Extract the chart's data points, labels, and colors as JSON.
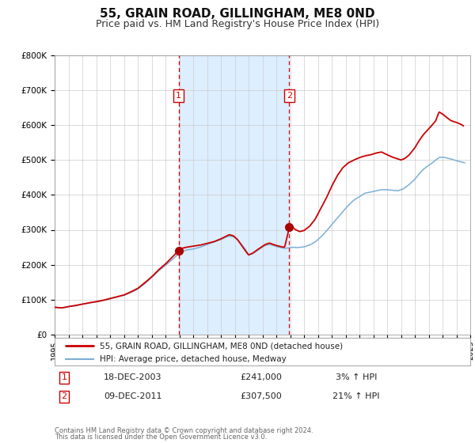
{
  "title": "55, GRAIN ROAD, GILLINGHAM, ME8 0ND",
  "subtitle": "Price paid vs. HM Land Registry's House Price Index (HPI)",
  "title_fontsize": 11,
  "subtitle_fontsize": 9,
  "background_color": "#ffffff",
  "plot_bg_color": "#ffffff",
  "grid_color": "#cccccc",
  "legend1_label": "55, GRAIN ROAD, GILLINGHAM, ME8 0ND (detached house)",
  "legend2_label": "HPI: Average price, detached house, Medway",
  "red_line_color": "#cc0000",
  "blue_line_color": "#7bafd4",
  "shade_color": "#ddeeff",
  "marker_color": "#aa0000",
  "sale1_x": 2003.96,
  "sale1_y": 241000,
  "sale1_label": "1",
  "sale2_x": 2011.94,
  "sale2_y": 307500,
  "sale2_label": "2",
  "table_rows": [
    {
      "num": "1",
      "date": "18-DEC-2003",
      "price": "£241,000",
      "hpi": "3% ↑ HPI"
    },
    {
      "num": "2",
      "date": "09-DEC-2011",
      "price": "£307,500",
      "hpi": "21% ↑ HPI"
    }
  ],
  "footer_line1": "Contains HM Land Registry data © Crown copyright and database right 2024.",
  "footer_line2": "This data is licensed under the Open Government Licence v3.0.",
  "ylim": [
    0,
    800000
  ],
  "xlim": [
    1995,
    2025
  ],
  "yticks": [
    0,
    100000,
    200000,
    300000,
    400000,
    500000,
    600000,
    700000,
    800000
  ],
  "ytick_labels": [
    "£0",
    "£100K",
    "£200K",
    "£300K",
    "£400K",
    "£500K",
    "£600K",
    "£700K",
    "£800K"
  ],
  "xticks": [
    1995,
    1996,
    1997,
    1998,
    1999,
    2000,
    2001,
    2002,
    2003,
    2004,
    2005,
    2006,
    2007,
    2008,
    2009,
    2010,
    2011,
    2012,
    2013,
    2014,
    2015,
    2016,
    2017,
    2018,
    2019,
    2020,
    2021,
    2022,
    2023,
    2024,
    2025
  ],
  "hpi_key_points": [
    [
      1995.0,
      78000
    ],
    [
      1995.5,
      76000
    ],
    [
      1996.0,
      80000
    ],
    [
      1996.5,
      82000
    ],
    [
      1997.0,
      87000
    ],
    [
      1997.5,
      90000
    ],
    [
      1998.0,
      93000
    ],
    [
      1998.5,
      97000
    ],
    [
      1999.0,
      102000
    ],
    [
      1999.5,
      107000
    ],
    [
      2000.0,
      112000
    ],
    [
      2000.5,
      120000
    ],
    [
      2001.0,
      130000
    ],
    [
      2001.5,
      145000
    ],
    [
      2002.0,
      163000
    ],
    [
      2002.5,
      182000
    ],
    [
      2003.0,
      198000
    ],
    [
      2003.5,
      215000
    ],
    [
      2004.0,
      233000
    ],
    [
      2004.5,
      242000
    ],
    [
      2005.0,
      245000
    ],
    [
      2005.5,
      250000
    ],
    [
      2006.0,
      258000
    ],
    [
      2006.5,
      265000
    ],
    [
      2007.0,
      272000
    ],
    [
      2007.3,
      278000
    ],
    [
      2007.6,
      282000
    ],
    [
      2007.9,
      280000
    ],
    [
      2008.2,
      272000
    ],
    [
      2008.5,
      258000
    ],
    [
      2008.8,
      242000
    ],
    [
      2009.0,
      228000
    ],
    [
      2009.3,
      232000
    ],
    [
      2009.6,
      240000
    ],
    [
      2009.9,
      248000
    ],
    [
      2010.2,
      255000
    ],
    [
      2010.5,
      258000
    ],
    [
      2010.8,
      255000
    ],
    [
      2011.0,
      252000
    ],
    [
      2011.3,
      249000
    ],
    [
      2011.6,
      247000
    ],
    [
      2011.9,
      248000
    ],
    [
      2012.2,
      250000
    ],
    [
      2012.5,
      249000
    ],
    [
      2012.8,
      250000
    ],
    [
      2013.1,
      252000
    ],
    [
      2013.5,
      258000
    ],
    [
      2013.9,
      268000
    ],
    [
      2014.3,
      283000
    ],
    [
      2014.7,
      300000
    ],
    [
      2015.0,
      315000
    ],
    [
      2015.4,
      333000
    ],
    [
      2015.8,
      352000
    ],
    [
      2016.2,
      370000
    ],
    [
      2016.6,
      385000
    ],
    [
      2017.0,
      395000
    ],
    [
      2017.4,
      405000
    ],
    [
      2017.8,
      408000
    ],
    [
      2018.2,
      412000
    ],
    [
      2018.6,
      415000
    ],
    [
      2019.0,
      415000
    ],
    [
      2019.4,
      413000
    ],
    [
      2019.8,
      412000
    ],
    [
      2020.2,
      418000
    ],
    [
      2020.6,
      430000
    ],
    [
      2021.0,
      445000
    ],
    [
      2021.3,
      460000
    ],
    [
      2021.6,
      473000
    ],
    [
      2021.9,
      482000
    ],
    [
      2022.2,
      490000
    ],
    [
      2022.5,
      500000
    ],
    [
      2022.8,
      508000
    ],
    [
      2023.1,
      508000
    ],
    [
      2023.4,
      505000
    ],
    [
      2023.7,
      502000
    ],
    [
      2024.0,
      498000
    ],
    [
      2024.3,
      495000
    ],
    [
      2024.6,
      492000
    ]
  ],
  "red_key_points": [
    [
      1995.0,
      78000
    ],
    [
      1995.5,
      76000
    ],
    [
      1996.0,
      80000
    ],
    [
      1996.5,
      83000
    ],
    [
      1997.0,
      87000
    ],
    [
      1997.5,
      91000
    ],
    [
      1998.0,
      94000
    ],
    [
      1998.5,
      98000
    ],
    [
      1999.0,
      103000
    ],
    [
      1999.5,
      108000
    ],
    [
      2000.0,
      113000
    ],
    [
      2000.5,
      122000
    ],
    [
      2001.0,
      132000
    ],
    [
      2001.5,
      148000
    ],
    [
      2002.0,
      165000
    ],
    [
      2002.5,
      185000
    ],
    [
      2003.0,
      202000
    ],
    [
      2003.5,
      222000
    ],
    [
      2003.96,
      241000
    ],
    [
      2004.2,
      247000
    ],
    [
      2004.5,
      250000
    ],
    [
      2005.0,
      253000
    ],
    [
      2005.5,
      256000
    ],
    [
      2006.0,
      261000
    ],
    [
      2006.5,
      266000
    ],
    [
      2007.0,
      274000
    ],
    [
      2007.3,
      280000
    ],
    [
      2007.6,
      286000
    ],
    [
      2007.9,
      283000
    ],
    [
      2008.2,
      272000
    ],
    [
      2008.5,
      255000
    ],
    [
      2008.8,
      238000
    ],
    [
      2009.0,
      228000
    ],
    [
      2009.3,
      233000
    ],
    [
      2009.6,
      242000
    ],
    [
      2009.9,
      250000
    ],
    [
      2010.2,
      258000
    ],
    [
      2010.5,
      262000
    ],
    [
      2010.8,
      258000
    ],
    [
      2011.0,
      255000
    ],
    [
      2011.3,
      252000
    ],
    [
      2011.6,
      250000
    ],
    [
      2011.94,
      307500
    ],
    [
      2012.1,
      310000
    ],
    [
      2012.4,
      300000
    ],
    [
      2012.7,
      295000
    ],
    [
      2013.0,
      298000
    ],
    [
      2013.4,
      310000
    ],
    [
      2013.8,
      330000
    ],
    [
      2014.2,
      360000
    ],
    [
      2014.6,
      390000
    ],
    [
      2015.0,
      425000
    ],
    [
      2015.4,
      455000
    ],
    [
      2015.8,
      478000
    ],
    [
      2016.2,
      492000
    ],
    [
      2016.6,
      500000
    ],
    [
      2017.0,
      507000
    ],
    [
      2017.4,
      512000
    ],
    [
      2017.8,
      515000
    ],
    [
      2018.2,
      520000
    ],
    [
      2018.6,
      523000
    ],
    [
      2019.0,
      515000
    ],
    [
      2019.4,
      508000
    ],
    [
      2019.8,
      503000
    ],
    [
      2020.0,
      500000
    ],
    [
      2020.3,
      505000
    ],
    [
      2020.6,
      515000
    ],
    [
      2021.0,
      535000
    ],
    [
      2021.3,
      555000
    ],
    [
      2021.6,
      572000
    ],
    [
      2021.9,
      585000
    ],
    [
      2022.2,
      598000
    ],
    [
      2022.5,
      612000
    ],
    [
      2022.75,
      638000
    ],
    [
      2023.0,
      632000
    ],
    [
      2023.3,
      622000
    ],
    [
      2023.6,
      613000
    ],
    [
      2024.0,
      608000
    ],
    [
      2024.3,
      603000
    ],
    [
      2024.5,
      598000
    ]
  ]
}
